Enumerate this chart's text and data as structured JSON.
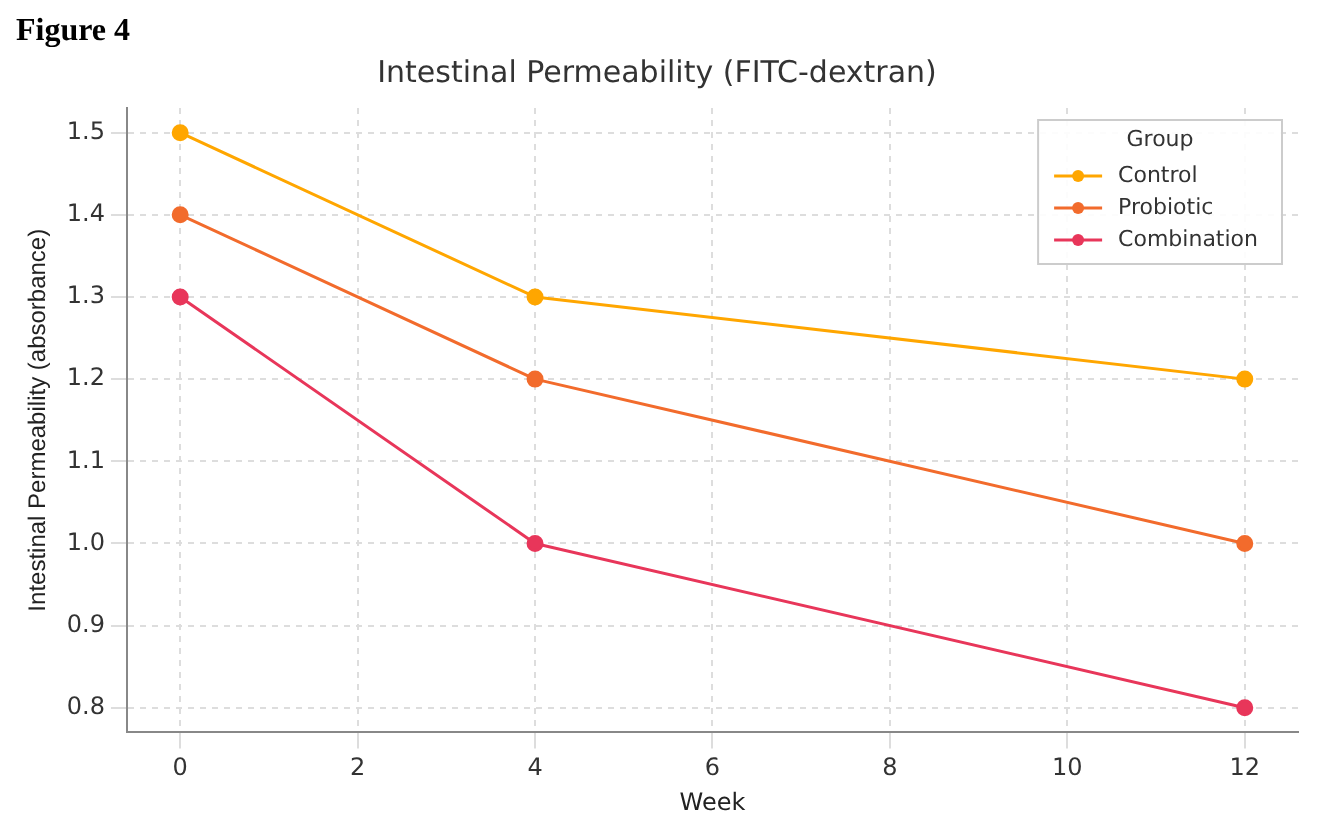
{
  "chart_data": {
    "type": "line",
    "title": "Intestinal Permeability (FITC-dextran)",
    "xlabel": "Week",
    "ylabel": "Intestinal Permeability (absorbance)",
    "legend_title": "Group",
    "annotations": [
      "Figure 4"
    ],
    "x": [
      0,
      4,
      12
    ],
    "series": [
      {
        "name": "Control",
        "color": "#ffa600",
        "values": [
          1.5,
          1.3,
          1.2
        ]
      },
      {
        "name": "Probiotic",
        "color": "#f26b2c",
        "values": [
          1.4,
          1.2,
          1.0
        ]
      },
      {
        "name": "Combination",
        "color": "#e8365a",
        "values": [
          1.3,
          1.0,
          0.8
        ]
      }
    ],
    "xlim": [
      -0.6,
      12.6
    ],
    "xticks": [
      0,
      2,
      4,
      6,
      8,
      10,
      12
    ],
    "ylim": [
      0.77,
      1.53
    ],
    "yticks": [
      0.8,
      0.9,
      {
        "value": 1,
        "label": "1.0"
      },
      1.1,
      1.2,
      1.3,
      1.4,
      1.5
    ],
    "grid": true,
    "legend": "top right",
    "marker": "circle",
    "line_style": "solid"
  }
}
